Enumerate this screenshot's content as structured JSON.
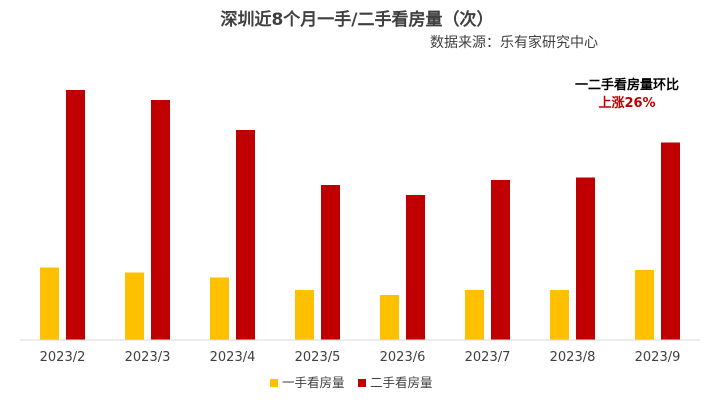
{
  "chart_data": {
    "type": "bar",
    "title": "深圳近8个月一手/二手看房量（次）",
    "subtitle": "数据来源：乐有家研究中心",
    "categories": [
      "2023/2",
      "2023/3",
      "2023/4",
      "2023/5",
      "2023/6",
      "2023/7",
      "2023/8",
      "2023/9"
    ],
    "series": [
      {
        "name": "一手看房量",
        "color": "#ffc000",
        "values": [
          29,
          27,
          25,
          20,
          18,
          20,
          20,
          28
        ]
      },
      {
        "name": "二手看房量",
        "color": "#c00000",
        "values": [
          100,
          96,
          84,
          62,
          58,
          64,
          65,
          79
        ]
      }
    ],
    "ylim": [
      0,
      100
    ],
    "grid": false,
    "legend": "bottom-center",
    "annotation": {
      "title": "一二手看房量环比",
      "value": "上涨26%"
    }
  }
}
